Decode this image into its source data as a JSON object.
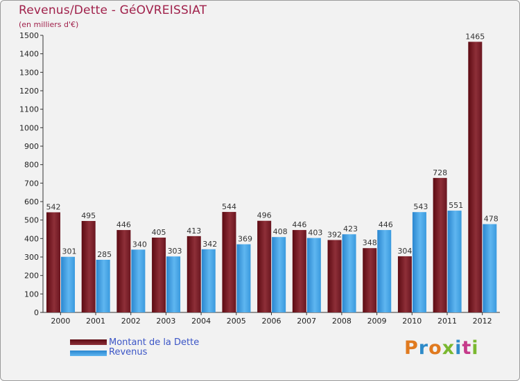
{
  "title": "Revenus/Dette - GéOVREISSIAT",
  "subtitle": "(en milliers d'€)",
  "brand": "Proxiti",
  "chart_data": {
    "type": "bar",
    "title": "Revenus/Dette - GéOVREISSIAT",
    "ylabel": "(en milliers d'€)",
    "xlabel": "",
    "categories": [
      "2000",
      "2001",
      "2002",
      "2003",
      "2004",
      "2005",
      "2006",
      "2007",
      "2008",
      "2009",
      "2010",
      "2011",
      "2012"
    ],
    "series": [
      {
        "name": "Montant de la Dette",
        "color": "#7b1f28",
        "values": [
          542,
          495,
          446,
          405,
          413,
          544,
          496,
          446,
          392,
          348,
          304,
          728,
          1465
        ]
      },
      {
        "name": "Revenus",
        "color": "#4aa8e8",
        "values": [
          301,
          285,
          340,
          303,
          342,
          369,
          408,
          403,
          423,
          446,
          543,
          551,
          478
        ]
      }
    ],
    "ylim": [
      0,
      1500
    ],
    "yticks": [
      0,
      100,
      200,
      300,
      400,
      500,
      600,
      700,
      800,
      900,
      1000,
      1100,
      1200,
      1300,
      1400,
      1500
    ],
    "grid": false,
    "legend": "bottom-left"
  },
  "colors": {
    "title": "#a0214b",
    "background": "#f2f2f2",
    "debt_dark": "#5c0a12",
    "debt_light": "#8e2f38",
    "revenue_dark": "#2a86cf",
    "revenue_light": "#5fb6f0",
    "legend_text": "#3b55c6"
  }
}
